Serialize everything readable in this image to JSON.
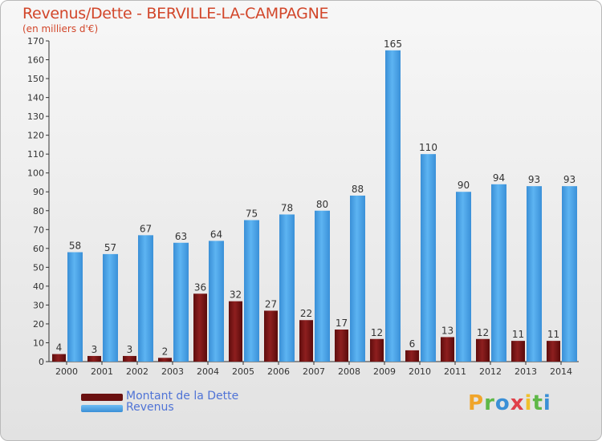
{
  "title": "Revenus/Dette - BERVILLE-LA-CAMPAGNE",
  "subtitle": "(en milliers d'€)",
  "legend": {
    "debt_label": "Montant de la Dette",
    "revenue_label": "Revenus"
  },
  "logo": {
    "text": "Proxiti",
    "letters": [
      "P",
      "r",
      "o",
      "x",
      "i",
      "t",
      "i"
    ]
  },
  "colors": {
    "title": "#d2462a",
    "debt": "#7a1414",
    "revenue": "#4ba3e8",
    "legend_text": "#4f73d6"
  },
  "chart_data": {
    "type": "bar",
    "categories": [
      "2000",
      "2001",
      "2002",
      "2003",
      "2004",
      "2005",
      "2006",
      "2007",
      "2008",
      "2009",
      "2010",
      "2011",
      "2012",
      "2013",
      "2014"
    ],
    "series": [
      {
        "name": "Montant de la Dette",
        "values": [
          4,
          3,
          3,
          2,
          36,
          32,
          27,
          22,
          17,
          12,
          6,
          13,
          12,
          11,
          11
        ]
      },
      {
        "name": "Revenus",
        "values": [
          58,
          57,
          67,
          63,
          64,
          75,
          78,
          80,
          88,
          165,
          110,
          90,
          94,
          93,
          93
        ]
      }
    ],
    "ylim": [
      0,
      170
    ],
    "yticks": [
      0,
      10,
      20,
      30,
      40,
      50,
      60,
      70,
      80,
      90,
      100,
      110,
      120,
      130,
      140,
      150,
      160,
      170
    ],
    "grid": false,
    "legend_position": "bottom-left"
  }
}
